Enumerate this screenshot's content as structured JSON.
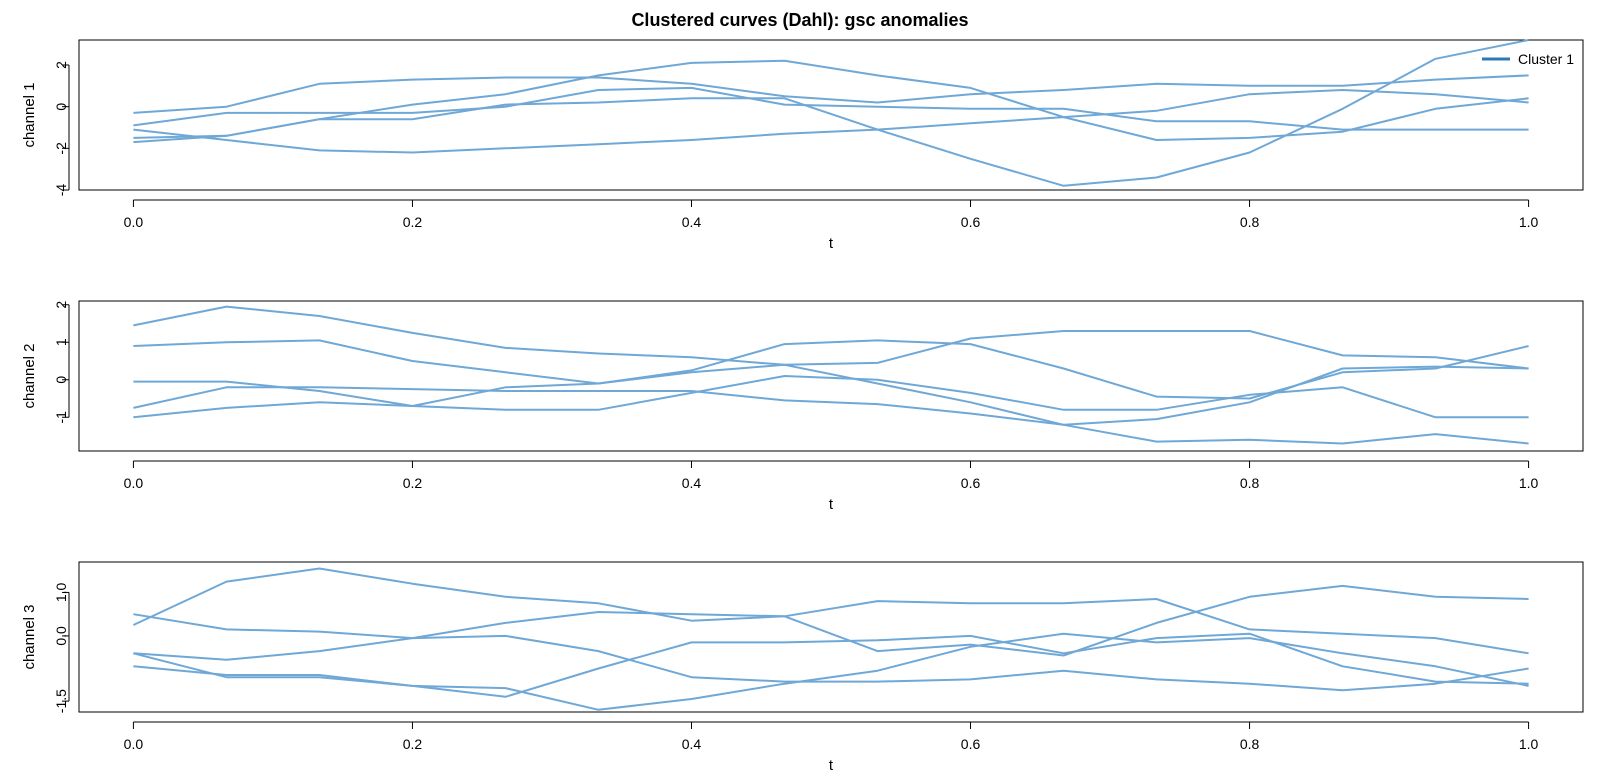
{
  "chart_data": {
    "type": "line",
    "title": "Clustered curves (Dahl): gsc anomalies",
    "legend": {
      "entries": [
        "Cluster 1"
      ],
      "placement": "top-right"
    },
    "colors": {
      "series": "#6FA8D6",
      "legend": "#2E78B7",
      "frame": "#000000"
    },
    "panels": [
      {
        "xlabel": "t",
        "ylabel": "channel 1",
        "xlim": [
          -0.039,
          1.039
        ],
        "ylim": [
          -4.0,
          3.2
        ],
        "x_ticks": [
          "0.0",
          "0.2",
          "0.4",
          "0.6",
          "0.8",
          "1.0"
        ],
        "y_ticks": [
          "-4",
          "-2",
          "0",
          "2"
        ],
        "x": [
          0,
          0.0667,
          0.1333,
          0.2,
          0.2667,
          0.3333,
          0.4,
          0.4667,
          0.5333,
          0.6,
          0.6667,
          0.7333,
          0.8,
          0.8667,
          0.9333,
          1.0
        ],
        "series": [
          {
            "values": [
              -0.3,
              0.0,
              1.1,
              1.3,
              1.4,
              1.4,
              1.1,
              0.5,
              0.2,
              0.6,
              0.8,
              1.1,
              1.0,
              1.0,
              1.3,
              1.5
            ]
          },
          {
            "values": [
              -0.9,
              -0.3,
              -0.3,
              -0.3,
              0.0,
              0.8,
              0.9,
              0.1,
              0.0,
              -0.1,
              -0.1,
              -0.7,
              -0.7,
              -1.1,
              -1.1,
              -1.1
            ]
          },
          {
            "values": [
              -1.7,
              -1.4,
              -0.6,
              0.1,
              0.6,
              1.5,
              2.1,
              2.2,
              1.5,
              0.9,
              -0.5,
              -1.6,
              -1.5,
              -1.2,
              -0.1,
              0.4
            ]
          },
          {
            "values": [
              -1.1,
              -1.6,
              -2.1,
              -2.2,
              -2.0,
              -1.8,
              -1.6,
              -1.3,
              -1.1,
              -0.8,
              -0.5,
              -0.2,
              0.6,
              0.8,
              0.6,
              0.2
            ]
          },
          {
            "values": [
              -1.5,
              -1.4,
              -0.6,
              -0.6,
              0.1,
              0.2,
              0.4,
              0.4,
              -1.1,
              -2.5,
              -3.8,
              -3.4,
              -2.2,
              -0.1,
              2.3,
              3.2
            ]
          }
        ]
      },
      {
        "xlabel": "t",
        "ylabel": "channel 2",
        "xlim": [
          -0.039,
          1.039
        ],
        "ylim": [
          -1.9,
          2.1
        ],
        "x_ticks": [
          "0.0",
          "0.2",
          "0.4",
          "0.6",
          "0.8",
          "1.0"
        ],
        "y_ticks": [
          "-1",
          "0",
          "1",
          "2"
        ],
        "x": [
          0,
          0.0667,
          0.1333,
          0.2,
          0.2667,
          0.3333,
          0.4,
          0.4667,
          0.5333,
          0.6,
          0.6667,
          0.7333,
          0.8,
          0.8667,
          0.9333,
          1.0
        ],
        "series": [
          {
            "values": [
              1.45,
              1.95,
              1.7,
              1.25,
              0.85,
              0.7,
              0.6,
              0.4,
              -0.1,
              -0.6,
              -1.2,
              -1.65,
              -1.6,
              -1.7,
              -1.45,
              -1.7
            ]
          },
          {
            "values": [
              0.9,
              1.0,
              1.05,
              0.5,
              0.2,
              -0.1,
              0.25,
              0.95,
              1.05,
              0.95,
              0.3,
              -0.45,
              -0.5,
              0.2,
              0.3,
              0.9
            ]
          },
          {
            "values": [
              -0.05,
              -0.05,
              -0.3,
              -0.7,
              -0.2,
              -0.1,
              0.2,
              0.4,
              0.45,
              1.1,
              1.3,
              1.3,
              1.3,
              0.65,
              0.6,
              0.3
            ]
          },
          {
            "values": [
              -0.75,
              -0.2,
              -0.2,
              -0.25,
              -0.3,
              -0.3,
              -0.3,
              -0.55,
              -0.65,
              -0.9,
              -1.2,
              -1.05,
              -0.6,
              0.3,
              0.35,
              0.3
            ]
          },
          {
            "values": [
              -1.0,
              -0.75,
              -0.6,
              -0.7,
              -0.8,
              -0.8,
              -0.35,
              0.1,
              0.0,
              -0.35,
              -0.8,
              -0.8,
              -0.4,
              -0.2,
              -1.0,
              -1.0
            ]
          }
        ]
      },
      {
        "xlabel": "t",
        "ylabel": "channel 3",
        "xlim": [
          -0.039,
          1.039
        ],
        "ylim": [
          -1.75,
          1.7
        ],
        "x_ticks": [
          "0.0",
          "0.2",
          "0.4",
          "0.6",
          "0.8",
          "1.0"
        ],
        "y_ticks": [
          "-1.5",
          "0.0",
          "1.0"
        ],
        "x": [
          0,
          0.0667,
          0.1333,
          0.2,
          0.2667,
          0.3333,
          0.4,
          0.4667,
          0.5333,
          0.6,
          0.6667,
          0.7333,
          0.8,
          0.8667,
          0.9333,
          1.0
        ],
        "series": [
          {
            "values": [
              0.25,
              1.25,
              1.55,
              1.2,
              0.9,
              0.75,
              0.35,
              0.45,
              -0.35,
              -0.2,
              -0.45,
              0.3,
              0.9,
              1.15,
              0.9,
              0.85
            ]
          },
          {
            "values": [
              0.5,
              0.15,
              0.1,
              -0.05,
              0.0,
              -0.35,
              -0.95,
              -1.05,
              -1.05,
              -1.0,
              -0.8,
              -1.0,
              -1.1,
              -1.25,
              -1.1,
              -0.75
            ]
          },
          {
            "values": [
              -0.4,
              -0.55,
              -0.35,
              -0.05,
              0.3,
              0.55,
              0.5,
              0.45,
              0.8,
              0.75,
              0.75,
              0.85,
              0.15,
              0.05,
              -0.05,
              -0.4
            ]
          },
          {
            "values": [
              -0.4,
              -0.95,
              -0.95,
              -1.15,
              -1.2,
              -1.7,
              -1.45,
              -1.1,
              -0.8,
              -0.25,
              0.05,
              -0.15,
              -0.05,
              -0.4,
              -0.7,
              -1.15
            ]
          },
          {
            "values": [
              -0.7,
              -0.9,
              -0.9,
              -1.15,
              -1.4,
              -0.75,
              -0.15,
              -0.15,
              -0.1,
              0.0,
              -0.4,
              -0.05,
              0.05,
              -0.7,
              -1.05,
              -1.1
            ]
          }
        ]
      }
    ]
  }
}
